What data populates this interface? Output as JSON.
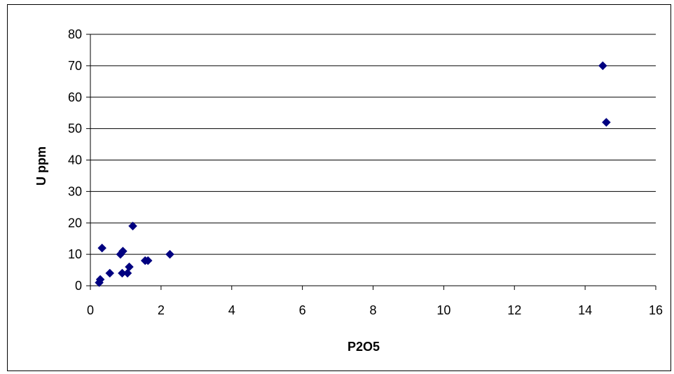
{
  "chart_data": {
    "type": "scatter",
    "title": "",
    "xlabel": "P2O5",
    "ylabel": "U ppm",
    "xlim": [
      0,
      16
    ],
    "ylim": [
      0,
      80
    ],
    "x_ticks": [
      0,
      2,
      4,
      6,
      8,
      10,
      12,
      14,
      16
    ],
    "y_ticks": [
      0,
      10,
      20,
      30,
      40,
      50,
      60,
      70,
      80
    ],
    "grid": "horizontal",
    "legend": "none",
    "marker": "diamond",
    "marker_color": "#000080",
    "series": [
      {
        "points": [
          [
            0.25,
            1
          ],
          [
            0.28,
            2
          ],
          [
            0.33,
            12
          ],
          [
            0.55,
            4
          ],
          [
            0.85,
            10
          ],
          [
            0.92,
            11
          ],
          [
            0.9,
            4
          ],
          [
            1.05,
            4
          ],
          [
            1.1,
            6
          ],
          [
            1.2,
            19
          ],
          [
            1.55,
            8
          ],
          [
            1.63,
            8
          ],
          [
            2.25,
            10
          ],
          [
            14.5,
            70
          ],
          [
            14.6,
            52
          ]
        ]
      }
    ]
  }
}
